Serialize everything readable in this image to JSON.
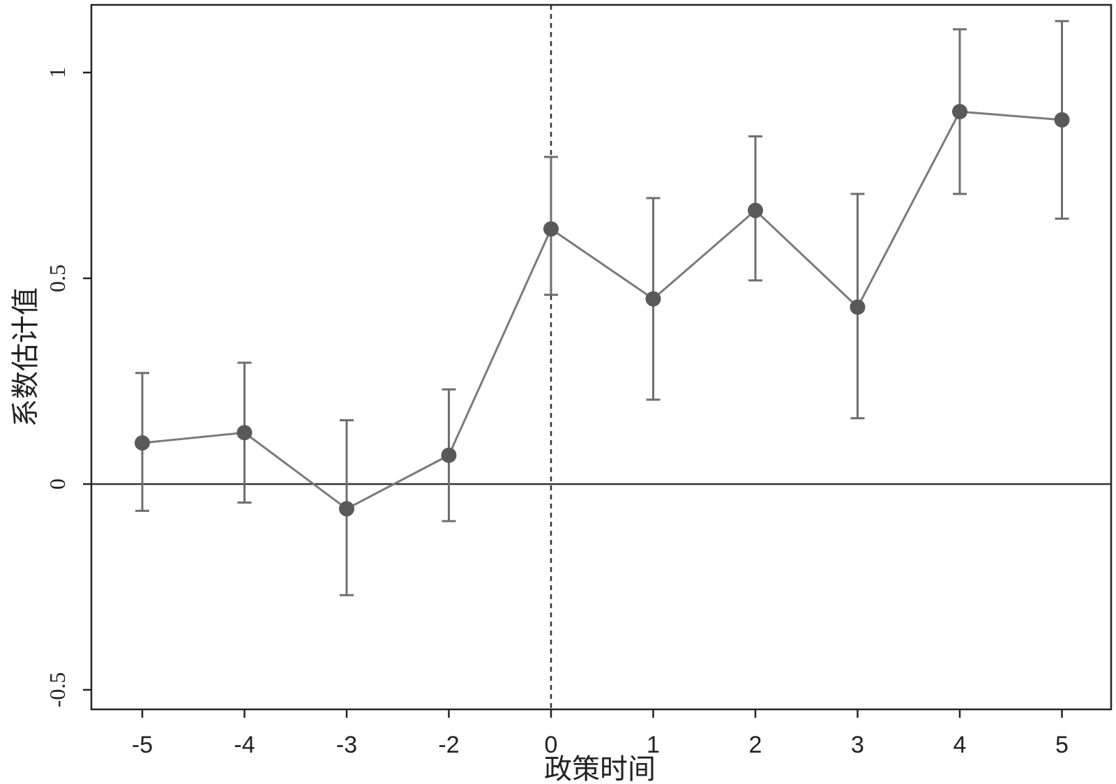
{
  "chart_data": {
    "type": "line",
    "title": "",
    "xlabel": "政策时间",
    "ylabel": "系数估计值",
    "categories": [
      "-5",
      "-4",
      "-3",
      "-2",
      "0",
      "1",
      "2",
      "3",
      "4",
      "5"
    ],
    "series": [
      {
        "name": "系数估计值",
        "values": [
          0.1,
          0.125,
          -0.06,
          0.07,
          0.62,
          0.45,
          0.665,
          0.43,
          0.905,
          0.885
        ],
        "ci_lower": [
          -0.065,
          -0.045,
          -0.27,
          -0.09,
          0.46,
          0.205,
          0.495,
          0.16,
          0.705,
          0.645
        ],
        "ci_upper": [
          0.27,
          0.295,
          0.155,
          0.23,
          0.795,
          0.695,
          0.845,
          0.705,
          1.105,
          1.125
        ]
      }
    ],
    "yticks": [
      -0.5,
      0,
      0.5,
      1
    ],
    "ytick_labels": [
      "-0.5",
      "0",
      "0.5",
      "1"
    ],
    "ylim": [
      -0.545,
      1.17
    ],
    "reference_lines": {
      "horizontal": 0,
      "vertical_at_category": "0"
    },
    "grid": false,
    "legend": "none",
    "colors": {
      "series": "#6e6e6e",
      "marker": "#595959",
      "axis": "#222222"
    }
  }
}
